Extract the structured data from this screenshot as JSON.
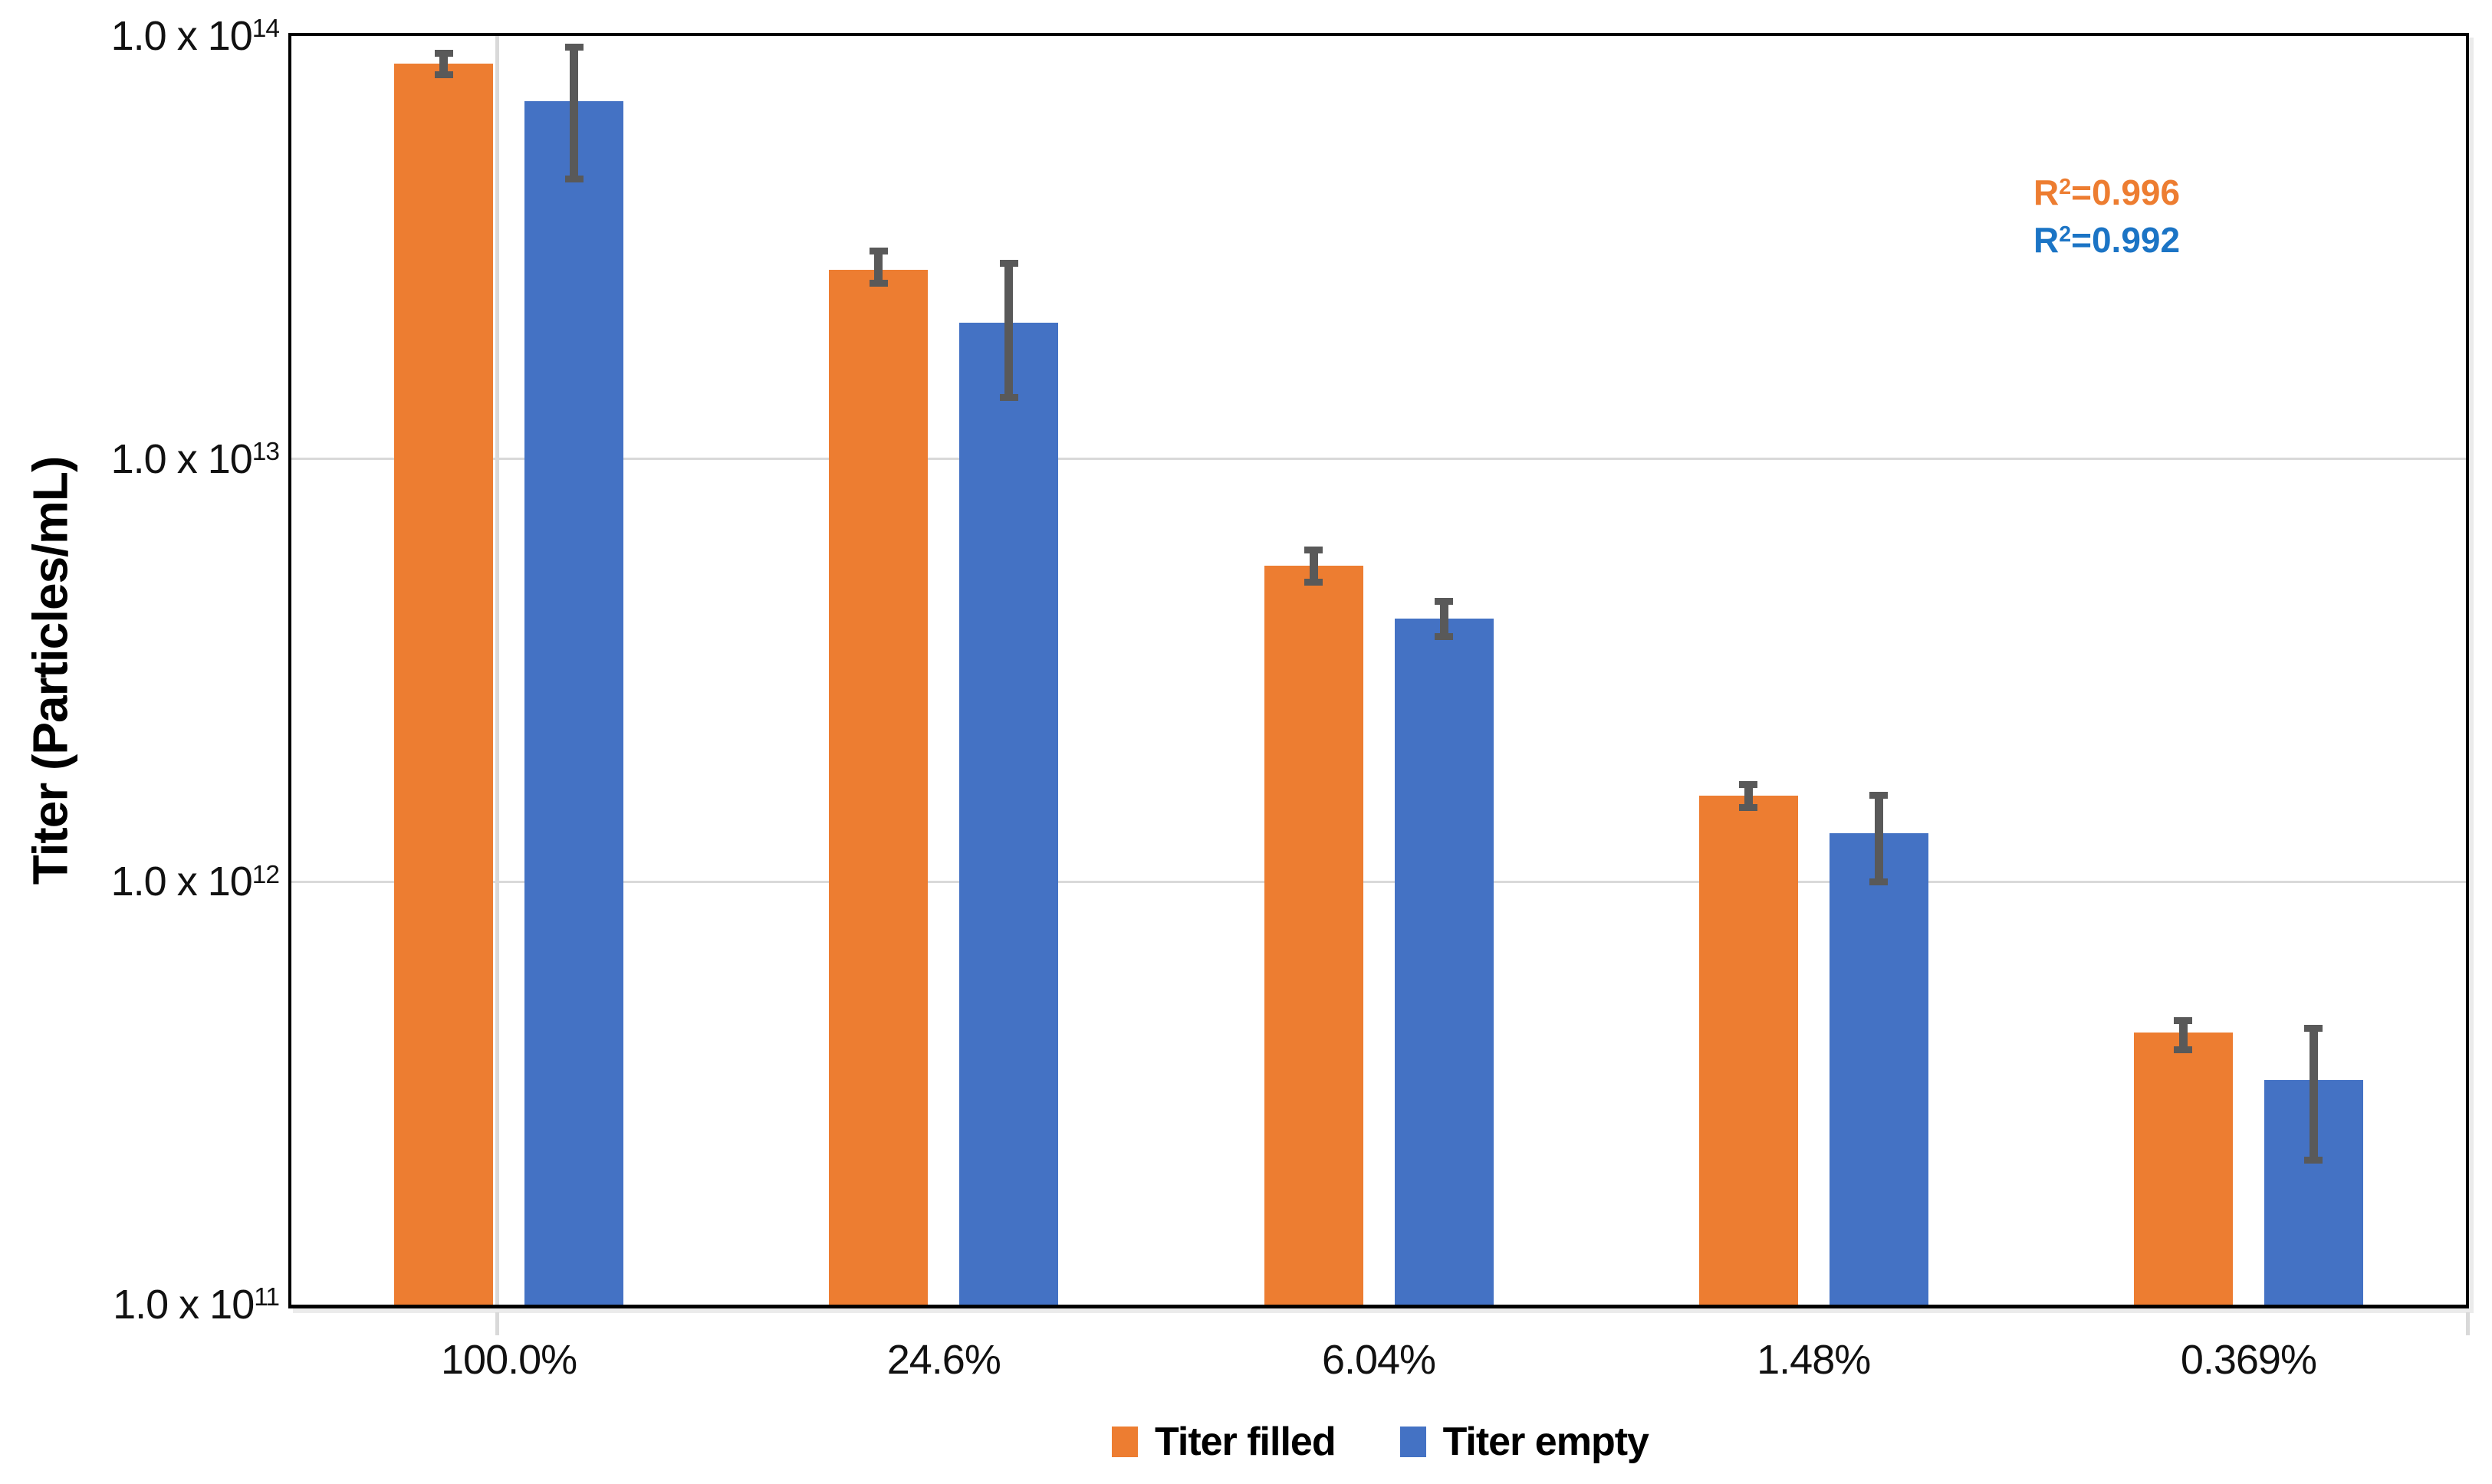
{
  "chart_data": {
    "type": "bar",
    "title": "",
    "xlabel": "",
    "ylabel": "Titer (Particles/mL)",
    "y_scale": "log",
    "y_min": 100000000000.0,
    "y_max": 100000000000000.0,
    "grid": "horizontal-major",
    "legend_position": "bottom",
    "gridline_color": "#D9D9D9",
    "error_bar_color": "#595959",
    "y_ticks": [
      {
        "base": "1.0 x 10",
        "exp": "14",
        "value": 100000000000000.0
      },
      {
        "base": "1.0 x 10",
        "exp": "13",
        "value": 10000000000000.0
      },
      {
        "base": "1.0 x 10",
        "exp": "12",
        "value": 1000000000000.0
      },
      {
        "base": "1.0 x 10",
        "exp": "11",
        "value": 100000000000.0
      }
    ],
    "categories": [
      "100.0%",
      "24.6%",
      "6.04%",
      "1.48%",
      "0.369%"
    ],
    "series": [
      {
        "name": "Titer filled",
        "color": "#ED7D31",
        "values": [
          86000000000000.0,
          28000000000000.0,
          5600000000000.0,
          1600000000000.0,
          440000000000.0
        ],
        "error_low": [
          81000000000000.0,
          26000000000000.0,
          5100000000000.0,
          1500000000000.0,
          400000000000.0
        ],
        "error_high": [
          91000000000000.0,
          31000000000000.0,
          6100000000000.0,
          1700000000000.0,
          470000000000.0
        ]
      },
      {
        "name": "Titer empty",
        "color": "#4472C4",
        "values": [
          70000000000000.0,
          21000000000000.0,
          4200000000000.0,
          1300000000000.0,
          340000000000.0
        ],
        "error_low": [
          46000000000000.0,
          14000000000000.0,
          3800000000000.0,
          1000000000000.0,
          220000000000.0
        ],
        "error_high": [
          94000000000000.0,
          29000000000000.0,
          4600000000000.0,
          1600000000000.0,
          450000000000.0
        ]
      }
    ],
    "annotations": [
      {
        "prefix": "R",
        "sup": "2",
        "text": "=0.996",
        "color": "#ED7D31"
      },
      {
        "prefix": "R",
        "sup": "2",
        "text": "=0.992",
        "color": "#1B74C5"
      }
    ]
  }
}
